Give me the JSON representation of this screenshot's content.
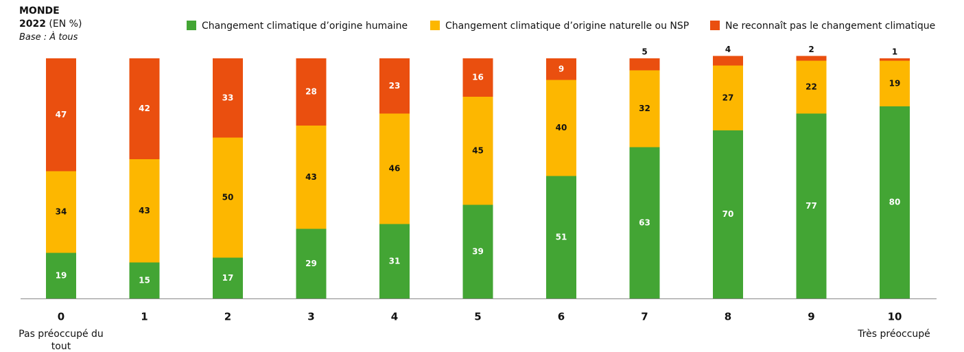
{
  "chart_data": {
    "type": "stacked_bar",
    "title": "MONDE",
    "subtitle": "2022",
    "unit": "(EN %)",
    "base": "Base : À tous",
    "categories": [
      "0",
      "1",
      "2",
      "3",
      "4",
      "5",
      "6",
      "7",
      "8",
      "9",
      "10"
    ],
    "annotations": [
      "Pas préoccupé du tout",
      "Très préoccupé"
    ],
    "series": [
      {
        "name": "Changement climatique d’origine humaine",
        "color": "#43a534",
        "values": [
          19,
          15,
          17,
          29,
          31,
          39,
          51,
          63,
          70,
          77,
          80
        ]
      },
      {
        "name": "Changement climatique d’origine naturelle ou NSP",
        "color": "#fdb700",
        "values": [
          34,
          43,
          50,
          43,
          46,
          45,
          40,
          32,
          27,
          22,
          19
        ]
      },
      {
        "name": "Ne reconnaît pas le changement climatique",
        "color": "#ea4f0f",
        "values": [
          47,
          42,
          33,
          28,
          23,
          16,
          9,
          5,
          4,
          2,
          1
        ]
      }
    ],
    "ylim": [
      0,
      100
    ],
    "legend": "top"
  }
}
